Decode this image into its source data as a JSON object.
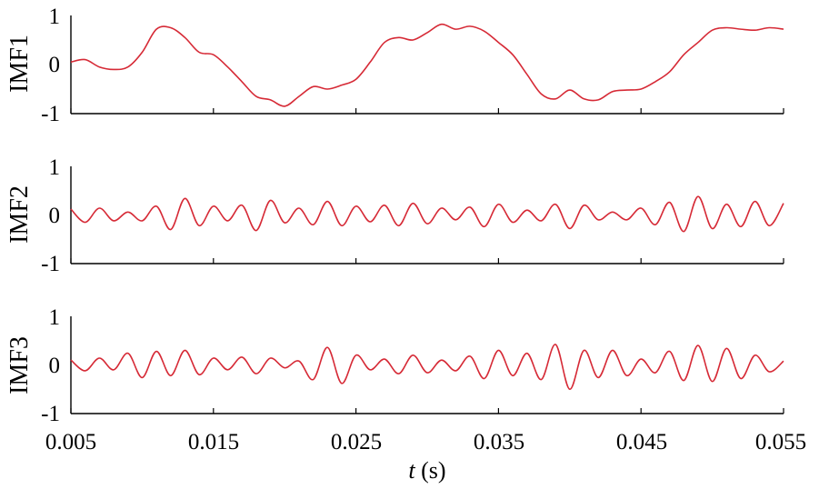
{
  "chart_data": {
    "type": "line",
    "layout": "stacked-subplots",
    "shared_x": true,
    "xlabel_var": "t",
    "xlabel_unit": " (s)",
    "xlim": [
      0.005,
      0.055
    ],
    "xticks": [
      "0.005",
      "0.015",
      "0.025",
      "0.035",
      "0.045",
      "0.055"
    ],
    "xtick_values": [
      0.005,
      0.015,
      0.025,
      0.035,
      0.045,
      0.055
    ],
    "line_color": "#d62a36",
    "grid": false,
    "legend": "none",
    "panels": [
      {
        "ylabel": "IMF1",
        "ylim": [
          -1,
          1
        ],
        "yticks": [
          "-1",
          "0",
          "1"
        ],
        "x": [
          0.005,
          0.006,
          0.007,
          0.008,
          0.009,
          0.01,
          0.011,
          0.012,
          0.013,
          0.014,
          0.015,
          0.016,
          0.017,
          0.018,
          0.019,
          0.02,
          0.021,
          0.022,
          0.023,
          0.024,
          0.025,
          0.026,
          0.027,
          0.028,
          0.029,
          0.03,
          0.031,
          0.032,
          0.033,
          0.034,
          0.035,
          0.036,
          0.037,
          0.038,
          0.039,
          0.04,
          0.041,
          0.042,
          0.043,
          0.044,
          0.045,
          0.046,
          0.047,
          0.048,
          0.049,
          0.05,
          0.051,
          0.052,
          0.053,
          0.054,
          0.055
        ],
        "values": [
          0.05,
          0.1,
          -0.05,
          -0.1,
          -0.05,
          0.25,
          0.72,
          0.75,
          0.55,
          0.25,
          0.2,
          -0.05,
          -0.35,
          -0.65,
          -0.72,
          -0.85,
          -0.65,
          -0.45,
          -0.5,
          -0.42,
          -0.3,
          0.05,
          0.45,
          0.55,
          0.5,
          0.65,
          0.82,
          0.72,
          0.78,
          0.68,
          0.45,
          0.2,
          -0.2,
          -0.6,
          -0.7,
          -0.52,
          -0.7,
          -0.72,
          -0.55,
          -0.52,
          -0.5,
          -0.35,
          -0.15,
          0.2,
          0.45,
          0.7,
          0.75,
          0.72,
          0.7,
          0.75,
          0.72
        ]
      },
      {
        "ylabel": "IMF2",
        "ylim": [
          -1,
          1
        ],
        "yticks": [
          "-1",
          "0",
          "1"
        ],
        "x": [
          0.005,
          0.006,
          0.007,
          0.008,
          0.009,
          0.01,
          0.011,
          0.012,
          0.013,
          0.014,
          0.015,
          0.016,
          0.017,
          0.018,
          0.019,
          0.02,
          0.021,
          0.022,
          0.023,
          0.024,
          0.025,
          0.026,
          0.027,
          0.028,
          0.029,
          0.03,
          0.031,
          0.032,
          0.033,
          0.034,
          0.035,
          0.036,
          0.037,
          0.038,
          0.039,
          0.04,
          0.041,
          0.042,
          0.043,
          0.044,
          0.045,
          0.046,
          0.047,
          0.048,
          0.049,
          0.05,
          0.051,
          0.052,
          0.053,
          0.054,
          0.055
        ],
        "values": [
          0.12,
          -0.15,
          0.14,
          -0.12,
          0.06,
          -0.12,
          0.18,
          -0.3,
          0.34,
          -0.22,
          0.18,
          -0.12,
          0.2,
          -0.32,
          0.3,
          -0.16,
          0.14,
          -0.2,
          0.28,
          -0.22,
          0.18,
          -0.14,
          0.2,
          -0.22,
          0.24,
          -0.18,
          0.14,
          -0.1,
          0.16,
          -0.24,
          0.22,
          -0.15,
          0.1,
          -0.12,
          0.22,
          -0.28,
          0.2,
          -0.1,
          0.06,
          -0.1,
          0.14,
          -0.2,
          0.26,
          -0.34,
          0.38,
          -0.28,
          0.22,
          -0.24,
          0.28,
          -0.22,
          0.24
        ]
      },
      {
        "ylabel": "IMF3",
        "ylim": [
          -1,
          1
        ],
        "yticks": [
          "-1",
          "0",
          "1"
        ],
        "x": [
          0.005,
          0.006,
          0.007,
          0.008,
          0.009,
          0.01,
          0.011,
          0.012,
          0.013,
          0.014,
          0.015,
          0.016,
          0.017,
          0.018,
          0.019,
          0.02,
          0.021,
          0.022,
          0.023,
          0.024,
          0.025,
          0.026,
          0.027,
          0.028,
          0.029,
          0.03,
          0.031,
          0.032,
          0.033,
          0.034,
          0.035,
          0.036,
          0.037,
          0.038,
          0.039,
          0.04,
          0.041,
          0.042,
          0.043,
          0.044,
          0.045,
          0.046,
          0.047,
          0.048,
          0.049,
          0.05,
          0.051,
          0.052,
          0.053,
          0.054,
          0.055
        ],
        "values": [
          0.1,
          -0.12,
          0.14,
          -0.1,
          0.24,
          -0.26,
          0.28,
          -0.22,
          0.3,
          -0.2,
          0.14,
          -0.1,
          0.16,
          -0.18,
          0.14,
          -0.06,
          0.08,
          -0.3,
          0.36,
          -0.38,
          0.2,
          -0.1,
          0.12,
          -0.18,
          0.2,
          -0.16,
          0.1,
          -0.12,
          0.18,
          -0.28,
          0.3,
          -0.22,
          0.24,
          -0.3,
          0.42,
          -0.5,
          0.3,
          -0.26,
          0.3,
          -0.22,
          0.12,
          -0.16,
          0.28,
          -0.32,
          0.4,
          -0.34,
          0.34,
          -0.28,
          0.2,
          -0.14,
          0.08
        ]
      }
    ]
  }
}
